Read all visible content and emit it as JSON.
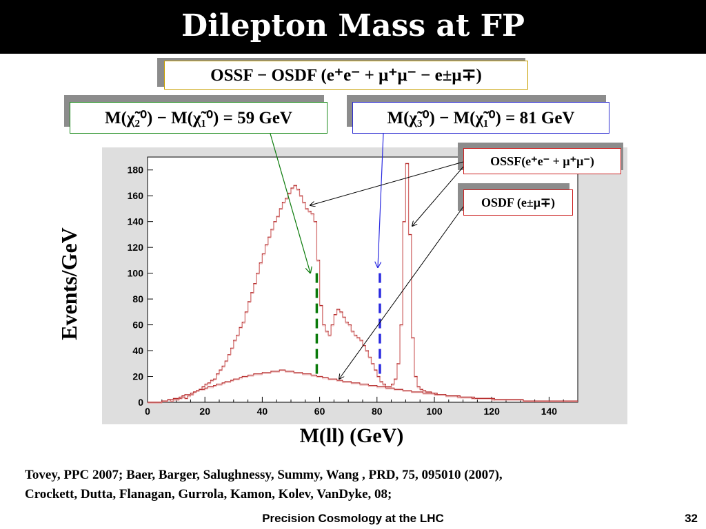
{
  "slide": {
    "title": "Dilepton Mass at FP",
    "footer": "Precision Cosmology at the LHC",
    "page_number": "32",
    "references": [
      "Tovey,  PPC 2007; Baer, Barger, Salughnessy, Summy, Wang , PRD, 75, 095010 (2007),",
      "Crockett, Dutta, Flanagan, Gurrola, Kamon, Kolev, VanDyke, 08;"
    ]
  },
  "annotations": {
    "top_box": {
      "text": "OSSF − OSDF (e⁺e⁻ + μ⁺μ⁻ − e±μ∓)",
      "border_color": "#c8a000"
    },
    "edge_59": {
      "text": "M(χ̃₂⁰) − M(χ̃₁⁰) = 59 GeV",
      "border_color": "#1a8a1a"
    },
    "edge_81": {
      "text": "M(χ̃₃⁰) − M(χ̃₁⁰) = 81 GeV",
      "border_color": "#2a2ad0"
    },
    "ossf_box": {
      "text": "OSSF(e⁺e⁻ + μ⁺μ⁻)",
      "border_color": "#cc2222"
    },
    "osdf_box": {
      "text": "OSDF (e±μ∓)",
      "border_color": "#cc2222"
    }
  },
  "colors": {
    "histogram": "#b52a2a",
    "edge_59_line": "#0a7a0a",
    "edge_81_line": "#2a2ae0",
    "frame_bg": "#dedede",
    "plot_bg": "#ffffff"
  },
  "chart_data": {
    "type": "line",
    "title": "",
    "xlabel": "M(ll) (GeV)",
    "ylabel": "Events/GeV",
    "xlim": [
      0,
      150
    ],
    "ylim": [
      0,
      190
    ],
    "x_ticks": [
      0,
      20,
      40,
      60,
      80,
      100,
      120,
      140
    ],
    "y_ticks": [
      0,
      20,
      40,
      60,
      80,
      100,
      120,
      140,
      160,
      180
    ],
    "bin_width": 1,
    "series": [
      {
        "name": "OSSF(e⁺e⁻ + μ⁺μ⁻)",
        "values": [
          0,
          0,
          0,
          0,
          0,
          1,
          1,
          2,
          1,
          2,
          2,
          3,
          4,
          3,
          5,
          6,
          8,
          9,
          10,
          12,
          14,
          15,
          17,
          18,
          22,
          25,
          28,
          32,
          37,
          42,
          48,
          52,
          58,
          62,
          70,
          78,
          85,
          92,
          100,
          108,
          115,
          122,
          128,
          134,
          140,
          144,
          150,
          155,
          158,
          162,
          166,
          168,
          165,
          160,
          155,
          150,
          148,
          146,
          140,
          110,
          75,
          60,
          55,
          52,
          60,
          68,
          72,
          70,
          66,
          62,
          60,
          55,
          52,
          50,
          48,
          44,
          40,
          35,
          30,
          25,
          20,
          16,
          14,
          12,
          12,
          14,
          18,
          30,
          60,
          140,
          185,
          130,
          50,
          20,
          12,
          10,
          9,
          8,
          8,
          7,
          7,
          6,
          6,
          6,
          5,
          5,
          5,
          5,
          4,
          4,
          4,
          4,
          4,
          3,
          3,
          3,
          3,
          3,
          3,
          3,
          2,
          2,
          2,
          2,
          2,
          2,
          2,
          2,
          2,
          2,
          2,
          1,
          1,
          1,
          1,
          1,
          1,
          1,
          1,
          1,
          1,
          1,
          1,
          1,
          1,
          1,
          1,
          1,
          1,
          1
        ]
      },
      {
        "name": "OSDF (e±μ∓)",
        "values": [
          0,
          0,
          0,
          0,
          0,
          1,
          1,
          2,
          2,
          3,
          3,
          4,
          5,
          6,
          6,
          7,
          8,
          9,
          10,
          10,
          11,
          12,
          12,
          13,
          14,
          14,
          15,
          16,
          16,
          17,
          18,
          18,
          19,
          20,
          20,
          21,
          21,
          22,
          22,
          22,
          23,
          23,
          23,
          24,
          24,
          24,
          25,
          25,
          24,
          24,
          24,
          23,
          23,
          23,
          22,
          22,
          22,
          21,
          21,
          20,
          20,
          19,
          19,
          18,
          18,
          18,
          17,
          17,
          16,
          16,
          16,
          15,
          15,
          15,
          14,
          14,
          14,
          13,
          13,
          13,
          12,
          12,
          12,
          11,
          11,
          11,
          10,
          10,
          10,
          9,
          9,
          9,
          8,
          8,
          8,
          8,
          7,
          7,
          7,
          7,
          6,
          6,
          6,
          6,
          5,
          5,
          5,
          5,
          5,
          4,
          4,
          4,
          4,
          4,
          3,
          3,
          3,
          3,
          3,
          3,
          3,
          2,
          2,
          2,
          2,
          2,
          2,
          2,
          2,
          2,
          2,
          1,
          1,
          1,
          1,
          1,
          1,
          1,
          1,
          1,
          1,
          1,
          1,
          1,
          1,
          1,
          1,
          1,
          1,
          1
        ]
      }
    ],
    "edges": [
      {
        "label": "59 GeV edge",
        "x": 59
      },
      {
        "label": "81 GeV edge",
        "x": 81
      }
    ]
  }
}
